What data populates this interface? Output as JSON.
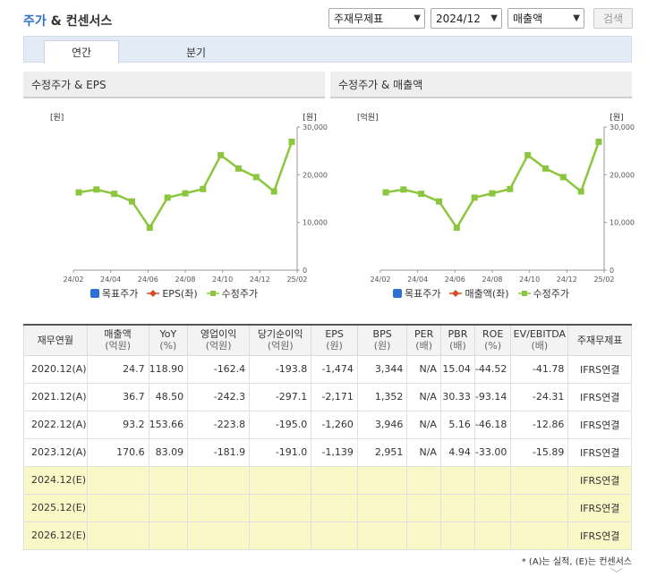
{
  "header": {
    "title_a": "주가",
    "title_b": " & 컨센서스",
    "selects": [
      "주재무제표",
      "2024/12",
      "매출액"
    ],
    "search_label": "검색"
  },
  "tabs": [
    {
      "label": "연간"
    },
    {
      "label": "분기"
    }
  ],
  "colors": {
    "accent": "#2f6fc5",
    "line": "#8cc63f",
    "target": "#2d6fd6",
    "eps": "#d94a2a",
    "estimate_bg": "#fbf8c8"
  },
  "panels": [
    {
      "title": "수정주가 & EPS",
      "left_unit": "[원]",
      "right_unit": "[원]",
      "legend": [
        "목표주가",
        "EPS(좌)",
        "수정주가"
      ]
    },
    {
      "title": "수정주가 & 매출액",
      "left_unit": "[억원]",
      "right_unit": "[원]",
      "legend": [
        "목표주가",
        "매출액(좌)",
        "수정주가"
      ]
    }
  ],
  "chart_data": [
    {
      "type": "line",
      "title": "수정주가 & EPS",
      "x_ticks": [
        "24/02",
        "24/04",
        "24/06",
        "24/08",
        "24/10",
        "24/12",
        "25/02"
      ],
      "y_right_ticks": [
        "30,000",
        "20,000",
        "10,000",
        "0"
      ],
      "ylim": [
        0,
        30000
      ],
      "series": [
        {
          "name": "수정주가",
          "values": [
            16300,
            16900,
            16000,
            14400,
            8900,
            15200,
            16100,
            17000,
            24100,
            21300,
            19500,
            16500,
            26900
          ]
        }
      ]
    },
    {
      "type": "line",
      "title": "수정주가 & 매출액",
      "x_ticks": [
        "24/02",
        "24/04",
        "24/06",
        "24/08",
        "24/10",
        "24/12",
        "25/02"
      ],
      "y_right_ticks": [
        "30,000",
        "20,000",
        "10,000",
        "0"
      ],
      "ylim": [
        0,
        30000
      ],
      "series": [
        {
          "name": "수정주가",
          "values": [
            16300,
            16900,
            16000,
            14400,
            8900,
            15200,
            16100,
            17000,
            24100,
            21300,
            19500,
            16500,
            26900
          ]
        }
      ]
    }
  ],
  "table": {
    "headers": [
      {
        "t": "재무연월",
        "s": ""
      },
      {
        "t": "매출액",
        "s": "(억원)"
      },
      {
        "t": "YoY",
        "s": "(%)"
      },
      {
        "t": "영업이익",
        "s": "(억원)"
      },
      {
        "t": "당기순이익",
        "s": "(억원)"
      },
      {
        "t": "EPS",
        "s": "(원)"
      },
      {
        "t": "BPS",
        "s": "(원)"
      },
      {
        "t": "PER",
        "s": "(배)"
      },
      {
        "t": "PBR",
        "s": "(배)"
      },
      {
        "t": "ROE",
        "s": "(%)"
      },
      {
        "t": "EV/EBITDA",
        "s": "(배)"
      },
      {
        "t": "주재무제표",
        "s": ""
      }
    ],
    "rows": [
      [
        "2020.12(A)",
        "24.7",
        "118.90",
        "-162.4",
        "-193.8",
        "-1,474",
        "3,344",
        "N/A",
        "15.04",
        "-44.52",
        "-41.78",
        "IFRS연결"
      ],
      [
        "2021.12(A)",
        "36.7",
        "48.50",
        "-242.3",
        "-297.1",
        "-2,171",
        "1,352",
        "N/A",
        "30.33",
        "-93.14",
        "-24.31",
        "IFRS연결"
      ],
      [
        "2022.12(A)",
        "93.2",
        "153.66",
        "-223.8",
        "-195.0",
        "-1,260",
        "3,946",
        "N/A",
        "5.16",
        "-46.18",
        "-12.86",
        "IFRS연결"
      ],
      [
        "2023.12(A)",
        "170.6",
        "83.09",
        "-181.9",
        "-191.0",
        "-1,139",
        "2,951",
        "N/A",
        "4.94",
        "-33.00",
        "-15.89",
        "IFRS연결"
      ],
      [
        "2024.12(E)",
        "",
        "",
        "",
        "",
        "",
        "",
        "",
        "",
        "",
        "",
        "IFRS연결"
      ],
      [
        "2025.12(E)",
        "",
        "",
        "",
        "",
        "",
        "",
        "",
        "",
        "",
        "",
        "IFRS연결"
      ],
      [
        "2026.12(E)",
        "",
        "",
        "",
        "",
        "",
        "",
        "",
        "",
        "",
        "",
        "IFRS연결"
      ]
    ]
  },
  "footnote": "* (A)는 실적, (E)는 컨센서스"
}
